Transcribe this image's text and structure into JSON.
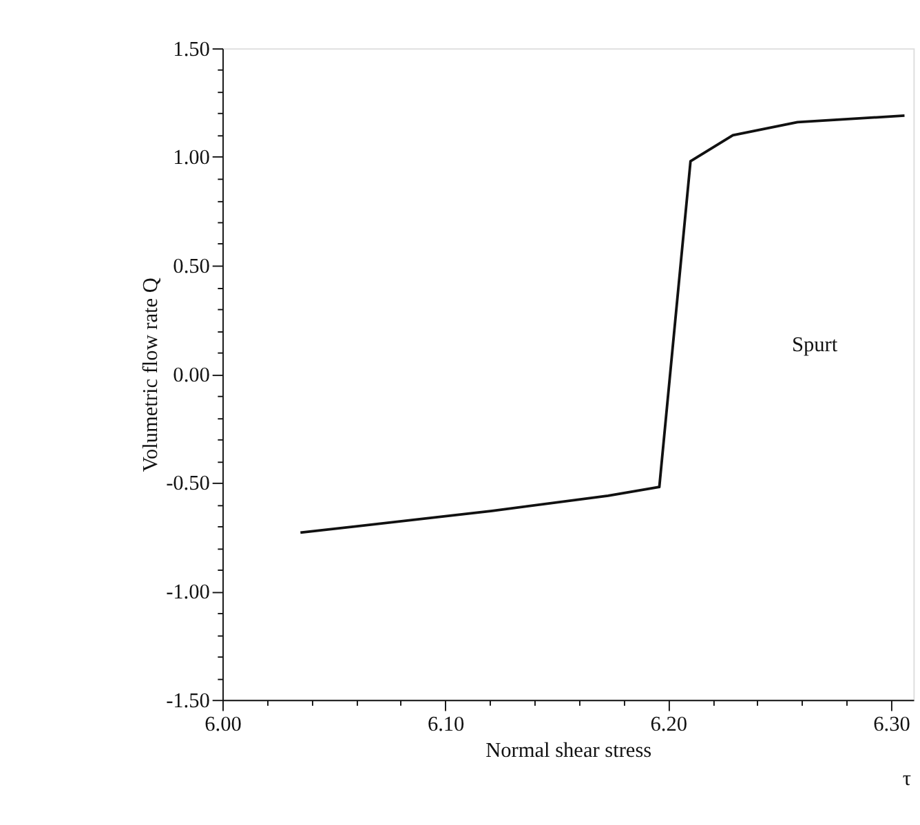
{
  "chart_data": {
    "type": "line",
    "xlabel": "Normal shear stress",
    "ylabel": "Volumetric flow rate Q",
    "annotations": [
      "Spurt",
      "τ"
    ],
    "series": [
      {
        "color": "#111111",
        "x": [
          6.035,
          6.121,
          6.173,
          6.196,
          6.21,
          6.229,
          6.258,
          6.306
        ],
        "values": [
          -0.73,
          -0.63,
          -0.56,
          -0.52,
          0.98,
          1.1,
          1.16,
          1.19
        ]
      }
    ],
    "xlim": [
      6.0,
      6.31
    ],
    "ylim": [
      -1.5,
      1.5
    ],
    "xticks": [
      {
        "value": 6.0,
        "label": "6.00"
      },
      {
        "value": 6.1,
        "label": "6.10"
      },
      {
        "value": 6.2,
        "label": "6.20"
      },
      {
        "value": 6.3,
        "label": "6.30"
      },
      {
        "value": 6.02,
        "label": null
      },
      {
        "value": 6.04,
        "label": null
      },
      {
        "value": 6.06,
        "label": null
      },
      {
        "value": 6.08,
        "label": null
      },
      {
        "value": 6.12,
        "label": null
      },
      {
        "value": 6.14,
        "label": null
      },
      {
        "value": 6.16,
        "label": null
      },
      {
        "value": 6.18,
        "label": null
      },
      {
        "value": 6.22,
        "label": null
      },
      {
        "value": 6.24,
        "label": null
      },
      {
        "value": 6.26,
        "label": null
      },
      {
        "value": 6.28,
        "label": null
      }
    ],
    "yticks": [
      {
        "value": -1.5,
        "label": "-1.50"
      },
      {
        "value": -1.0,
        "label": "-1.00"
      },
      {
        "value": -0.5,
        "label": "-0.50"
      },
      {
        "value": 0.0,
        "label": "0.00"
      },
      {
        "value": 0.5,
        "label": "0.50"
      },
      {
        "value": 1.0,
        "label": "1.00"
      },
      {
        "value": 1.5,
        "label": "1.50"
      },
      {
        "value": -1.4,
        "label": null
      },
      {
        "value": -1.3,
        "label": null
      },
      {
        "value": -1.2,
        "label": null
      },
      {
        "value": -1.1,
        "label": null
      },
      {
        "value": -0.9,
        "label": null
      },
      {
        "value": -0.8,
        "label": null
      },
      {
        "value": -0.7,
        "label": null
      },
      {
        "value": -0.6,
        "label": null
      },
      {
        "value": -0.4,
        "label": null
      },
      {
        "value": -0.3,
        "label": null
      },
      {
        "value": -0.2,
        "label": null
      },
      {
        "value": -0.1,
        "label": null
      },
      {
        "value": 0.1,
        "label": null
      },
      {
        "value": 0.2,
        "label": null
      },
      {
        "value": 0.3,
        "label": null
      },
      {
        "value": 0.4,
        "label": null
      },
      {
        "value": 0.6,
        "label": null
      },
      {
        "value": 0.7,
        "label": null
      },
      {
        "value": 0.8,
        "label": null
      },
      {
        "value": 0.9,
        "label": null
      },
      {
        "value": 1.1,
        "label": null
      },
      {
        "value": 1.2,
        "label": null
      },
      {
        "value": 1.3,
        "label": null
      },
      {
        "value": 1.4,
        "label": null
      }
    ],
    "grid": false,
    "marker": "none",
    "line_style": "solid"
  }
}
